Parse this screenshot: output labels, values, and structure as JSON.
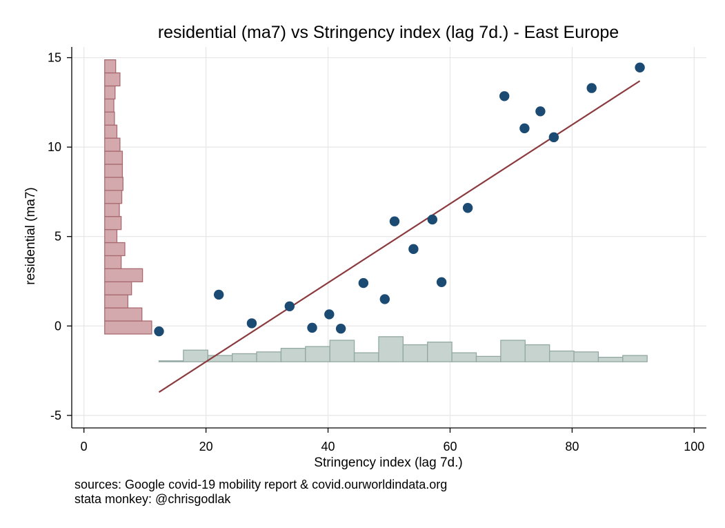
{
  "chart_data": {
    "type": "scatter",
    "title": "residential (ma7) vs Stringency index (lag 7d.) - East Europe",
    "xlabel": "Stringency index (lag 7d.)",
    "ylabel": "residential (ma7)",
    "xlim": [
      -2,
      102
    ],
    "ylim": [
      -5.7,
      15.6
    ],
    "xticks": [
      0,
      20,
      40,
      60,
      80,
      100
    ],
    "yticks": [
      -5,
      0,
      5,
      10,
      15
    ],
    "grid": true,
    "legend": "none",
    "colors": {
      "points": "#1b4a73",
      "fit_line": "#8b3a3e",
      "y_hist_fill": "#d4a9ad",
      "y_hist_stroke": "#a86a70",
      "x_hist_fill": "#c6d3cf",
      "x_hist_stroke": "#93a8a2"
    },
    "series": [
      {
        "type": "scatter",
        "x": [
          12.3,
          22.1,
          27.5,
          33.7,
          37.4,
          40.2,
          42.1,
          45.8,
          49.3,
          50.9,
          54.0,
          57.1,
          58.6,
          62.9,
          68.9,
          72.2,
          74.8,
          77.0,
          83.2,
          91.1
        ],
        "y": [
          -0.3,
          1.75,
          0.15,
          1.1,
          -0.1,
          0.65,
          -0.15,
          2.4,
          1.5,
          5.85,
          4.3,
          5.95,
          2.45,
          6.6,
          12.85,
          11.05,
          12.0,
          10.55,
          13.3,
          14.45
        ]
      },
      {
        "type": "line",
        "name": "",
        "x": [
          12.3,
          91.1
        ],
        "y": [
          -3.7,
          13.7
        ]
      }
    ],
    "y_histogram": {
      "bin_start": -0.45,
      "bin_width": 0.73,
      "x_base": 3.4,
      "x_lengths": [
        7.7,
        6.1,
        3.8,
        4.4,
        6.2,
        2.7,
        3.3,
        2.0,
        2.7,
        2.4,
        2.8,
        3.0,
        2.9,
        2.9,
        2.5,
        2.0,
        1.6,
        1.5,
        1.7,
        2.5,
        1.8
      ]
    },
    "x_histogram": {
      "bin_start": 12.3,
      "bin_width": 4.0,
      "y_base": -2.0,
      "heights": [
        0.05,
        0.65,
        0.35,
        0.45,
        0.55,
        0.75,
        0.85,
        1.2,
        0.5,
        1.4,
        0.95,
        1.1,
        0.5,
        0.3,
        1.2,
        0.95,
        0.6,
        0.55,
        0.25,
        0.35
      ]
    },
    "notes": [
      "sources: Google covid-19 mobility report & covid.ourworldindata.org",
      "stata monkey: @chrisgodlak"
    ]
  }
}
